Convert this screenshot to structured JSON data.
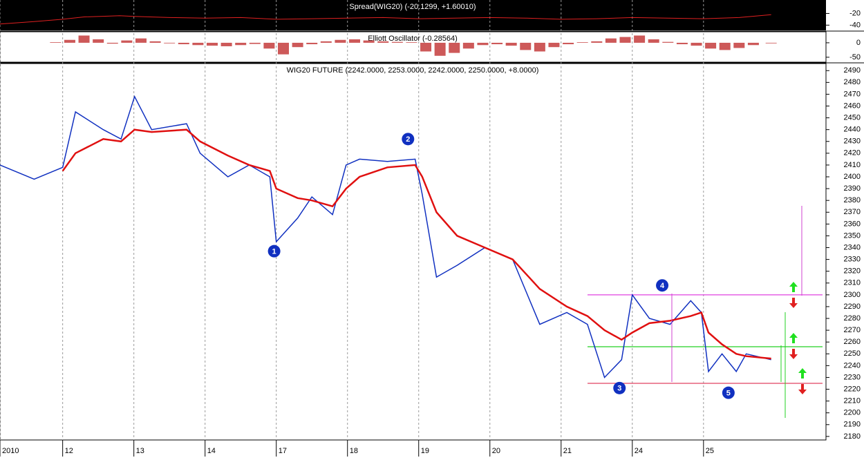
{
  "chart_data": [
    {
      "type": "line",
      "title": "Spread(WIG20) (-20.1299, +1.60010)",
      "x": [
        -0.88,
        -0.4,
        0,
        0.3,
        0.8,
        1.0,
        1.5,
        2.0,
        2.5,
        3.0,
        3.5,
        4.0,
        4.5,
        5.0,
        5.5,
        6.0,
        6.5,
        7.0,
        7.5,
        8.0,
        8.5,
        9.0,
        9.5,
        9.95
      ],
      "series": [
        {
          "color": "#e02020",
          "values": [
            -38,
            -34,
            -30,
            -26,
            -24,
            -25,
            -27,
            -28,
            -27,
            -30,
            -29,
            -28,
            -27,
            -29,
            -28,
            -27,
            -28,
            -30,
            -29,
            -27,
            -28,
            -29,
            -27,
            -22
          ]
        }
      ],
      "xlim": [
        -0.88,
        10.72
      ],
      "ylim": [
        -49,
        3
      ],
      "yticks": [
        -20,
        -40
      ]
    },
    {
      "type": "bar",
      "title": "Elliott Oscillator (-0.28564)",
      "x": [
        -0.1,
        0.1,
        0.3,
        0.5,
        0.7,
        0.9,
        1.1,
        1.3,
        1.5,
        1.7,
        1.9,
        2.1,
        2.3,
        2.5,
        2.7,
        2.9,
        3.1,
        3.3,
        3.5,
        3.7,
        3.9,
        4.1,
        4.3,
        4.5,
        4.7,
        4.9,
        5.1,
        5.3,
        5.5,
        5.7,
        5.9,
        6.1,
        6.3,
        6.5,
        6.7,
        6.9,
        7.1,
        7.3,
        7.5,
        7.7,
        7.9,
        8.1,
        8.3,
        8.5,
        8.7,
        8.9,
        9.1,
        9.3,
        9.5,
        9.7,
        9.95
      ],
      "series": [
        {
          "color": "#c03030",
          "values": [
            2,
            10,
            25,
            12,
            -3,
            8,
            15,
            5,
            -2,
            -5,
            -8,
            -10,
            -12,
            -8,
            -4,
            -20,
            -40,
            -15,
            -5,
            5,
            10,
            12,
            8,
            5,
            3,
            2,
            -30,
            -45,
            -35,
            -20,
            -8,
            -5,
            -10,
            -25,
            -30,
            -15,
            -5,
            2,
            5,
            15,
            20,
            25,
            12,
            3,
            -5,
            -10,
            -20,
            -25,
            -18,
            -8,
            -2
          ]
        }
      ],
      "xlim": [
        -0.88,
        10.72
      ],
      "ylim": [
        -67,
        38
      ],
      "yticks": [
        0,
        -50
      ]
    },
    {
      "type": "line",
      "title": "WIG20 FUTURE (2242.0000, 2253.0000, 2242.0000, 2250.0000, +8.0000)",
      "x": [
        -0.88,
        -0.4,
        0,
        0.18,
        0.57,
        0.82,
        1.01,
        1.25,
        1.74,
        1.93,
        2.32,
        2.62,
        2.91,
        3.0,
        3.3,
        3.5,
        3.79,
        3.98,
        4.17,
        4.56,
        4.95,
        5.05,
        5.25,
        5.54,
        5.93,
        6.32,
        6.7,
        7.08,
        7.37,
        7.61,
        7.85,
        8.0,
        8.24,
        8.53,
        8.82,
        8.97,
        9.07,
        9.26,
        9.46,
        9.6,
        9.95
      ],
      "series": [
        {
          "color": "#1030c0",
          "values": [
            2410,
            2398,
            2408,
            2455,
            2440,
            2432,
            2468,
            2440,
            2445,
            2420,
            2400,
            2410,
            2400,
            2345,
            2365,
            2383,
            2368,
            2410,
            2415,
            2413,
            2415,
            2385,
            2315,
            2325,
            2340,
            2330,
            2275,
            2285,
            2275,
            2230,
            2245,
            2300,
            2280,
            2275,
            2295,
            2285,
            2235,
            2250,
            2235,
            2250,
            2245
          ]
        },
        {
          "color": "#e01010",
          "values": [
            null,
            null,
            2405,
            2420,
            2432,
            2430,
            2440,
            2438,
            2440,
            2430,
            2418,
            2410,
            2405,
            2390,
            2382,
            2380,
            2375,
            2390,
            2400,
            2408,
            2410,
            2400,
            2370,
            2350,
            2340,
            2330,
            2305,
            2290,
            2282,
            2270,
            2262,
            2268,
            2276,
            2278,
            2282,
            2285,
            2268,
            2258,
            2250,
            2248,
            2246
          ]
        }
      ],
      "hlines": [
        {
          "value": 2300,
          "color": "#e040e0"
        },
        {
          "value": 2256,
          "color": "#20d020"
        },
        {
          "value": 2225,
          "color": "#e04060"
        }
      ],
      "annotations": [
        {
          "text": "1",
          "x": 2.97,
          "y": 2337
        },
        {
          "text": "2",
          "x": 4.85,
          "y": 2432
        },
        {
          "text": "3",
          "x": 7.82,
          "y": 2221
        },
        {
          "text": "4",
          "x": 8.42,
          "y": 2308
        },
        {
          "text": "5",
          "x": 9.35,
          "y": 2217
        }
      ],
      "xlim": [
        -0.88,
        10.72
      ],
      "ylim": [
        2177,
        2496
      ],
      "xticks": [
        {
          "value": -0.88,
          "label": "2010"
        },
        {
          "value": 0,
          "label": "12"
        },
        {
          "value": 1,
          "label": "13"
        },
        {
          "value": 2,
          "label": "14"
        },
        {
          "value": 3,
          "label": "17"
        },
        {
          "value": 4,
          "label": "18"
        },
        {
          "value": 5,
          "label": "19"
        },
        {
          "value": 6,
          "label": "20"
        },
        {
          "value": 7,
          "label": "21"
        },
        {
          "value": 8,
          "label": "24"
        },
        {
          "value": 9,
          "label": "25"
        }
      ],
      "yticks": [
        2180,
        2190,
        2200,
        2210,
        2220,
        2230,
        2240,
        2250,
        2260,
        2270,
        2280,
        2290,
        2300,
        2310,
        2320,
        2330,
        2340,
        2350,
        2360,
        2370,
        2380,
        2390,
        2400,
        2410,
        2420,
        2430,
        2440,
        2450,
        2460,
        2470,
        2480,
        2490
      ],
      "grid": true
    }
  ]
}
